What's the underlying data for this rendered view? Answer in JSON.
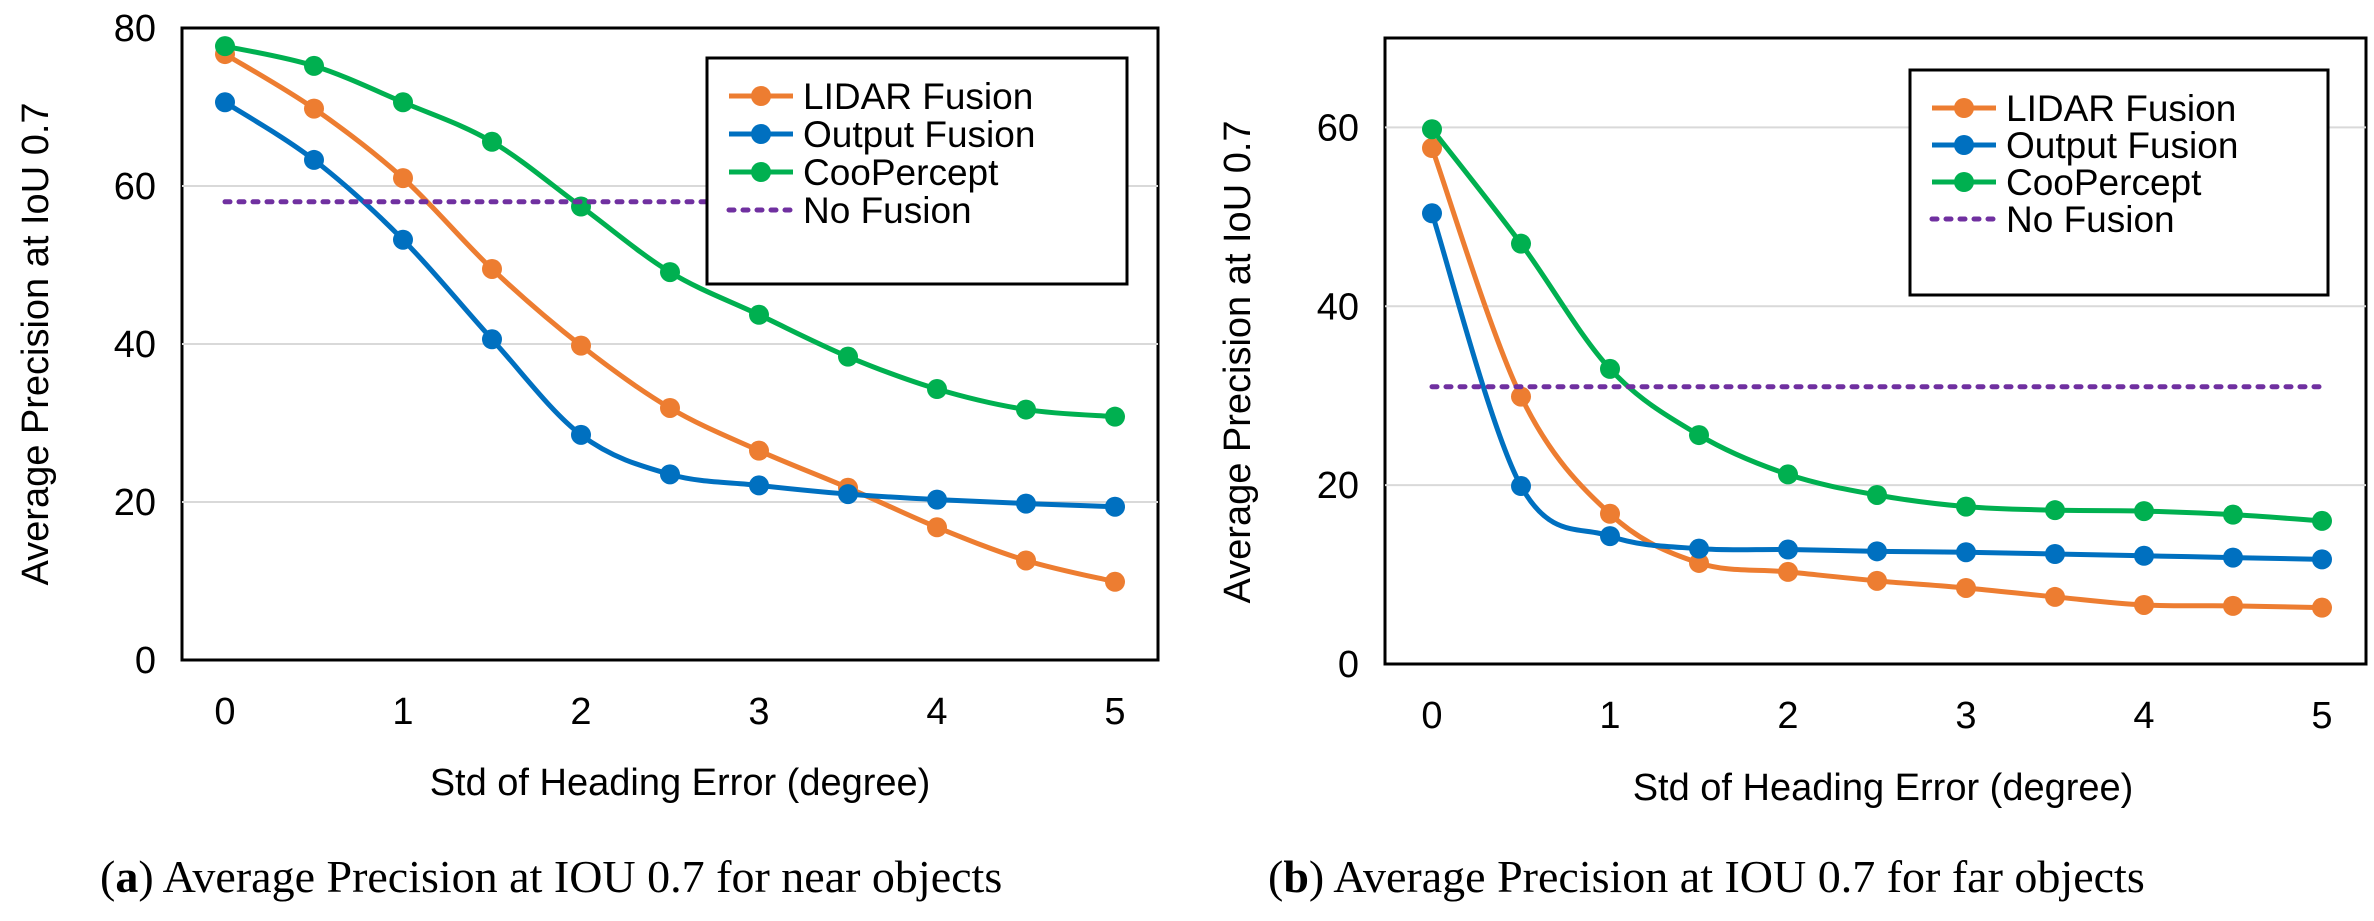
{
  "chart_data": [
    {
      "type": "line",
      "panel": "a",
      "caption_label": "a",
      "caption_text": "Average Precision at IOU 0.7 for near objects",
      "xlabel": "Std of Heading Error (degree)",
      "ylabel": "Average Precision at IoU 0.7",
      "xlim": [
        -0.25,
        5.25
      ],
      "ylim": [
        0,
        80
      ],
      "xticks": [
        0,
        1,
        2,
        3,
        4,
        5
      ],
      "yticks": [
        0,
        20,
        40,
        60,
        80
      ],
      "grid": true,
      "legend_position": "top-right",
      "series": [
        {
          "name": "LIDAR Fusion",
          "color": "#ED7D31",
          "style": "solid",
          "x": [
            0,
            0.5,
            1,
            1.5,
            2,
            2.5,
            3,
            3.5,
            4,
            4.5,
            5
          ],
          "values": [
            76.7,
            69.8,
            61.0,
            49.5,
            39.8,
            31.9,
            26.5,
            21.8,
            16.8,
            12.6,
            9.9
          ]
        },
        {
          "name": "Output Fusion",
          "color": "#0070C0",
          "style": "solid",
          "x": [
            0,
            0.5,
            1,
            1.5,
            2,
            2.5,
            3,
            3.5,
            4,
            4.5,
            5
          ],
          "values": [
            70.6,
            63.3,
            53.2,
            40.6,
            28.5,
            23.5,
            22.1,
            21.0,
            20.3,
            19.8,
            19.4
          ]
        },
        {
          "name": "CooPercept",
          "color": "#00B050",
          "style": "solid",
          "x": [
            0,
            0.5,
            1,
            1.5,
            2,
            2.5,
            3,
            3.5,
            4,
            4.5,
            5
          ],
          "values": [
            77.7,
            75.2,
            70.6,
            65.6,
            57.4,
            49.1,
            43.7,
            38.4,
            34.3,
            31.7,
            30.8
          ]
        },
        {
          "name": "No Fusion",
          "color": "#7030A0",
          "style": "dotted",
          "x": [
            0,
            5
          ],
          "values": [
            58.0,
            58.0
          ]
        }
      ]
    },
    {
      "type": "line",
      "panel": "b",
      "caption_label": "b",
      "caption_text": "Average Precision at IOU 0.7 for far objects",
      "xlabel": "Std of Heading Error (degree)",
      "ylabel": "Average Precision at IoU 0.7",
      "xlim": [
        -0.25,
        5.25
      ],
      "ylim": [
        0,
        70
      ],
      "xticks": [
        0,
        1,
        2,
        3,
        4,
        5
      ],
      "yticks": [
        0,
        20,
        40,
        60
      ],
      "grid": true,
      "legend_position": "top-right",
      "series": [
        {
          "name": "LIDAR Fusion",
          "color": "#ED7D31",
          "style": "solid",
          "x": [
            0,
            0.5,
            1,
            1.5,
            2,
            2.5,
            3,
            3.5,
            4,
            4.5,
            5
          ],
          "values": [
            57.7,
            29.9,
            16.8,
            11.3,
            10.3,
            9.3,
            8.5,
            7.5,
            6.6,
            6.5,
            6.3
          ]
        },
        {
          "name": "Output Fusion",
          "color": "#0070C0",
          "style": "solid",
          "x": [
            0,
            0.5,
            1,
            1.5,
            2,
            2.5,
            3,
            3.5,
            4,
            4.5,
            5
          ],
          "values": [
            50.4,
            19.9,
            14.3,
            12.9,
            12.8,
            12.6,
            12.5,
            12.3,
            12.1,
            11.9,
            11.7
          ]
        },
        {
          "name": "CooPercept",
          "color": "#00B050",
          "style": "solid",
          "x": [
            0,
            0.5,
            1,
            1.5,
            2,
            2.5,
            3,
            3.5,
            4,
            4.5,
            5
          ],
          "values": [
            59.8,
            47.0,
            33.0,
            25.6,
            21.2,
            18.9,
            17.6,
            17.2,
            17.1,
            16.7,
            16.0
          ]
        },
        {
          "name": "No Fusion",
          "color": "#7030A0",
          "style": "dotted",
          "x": [
            0,
            5
          ],
          "values": [
            31.0,
            31.0
          ]
        }
      ]
    }
  ]
}
